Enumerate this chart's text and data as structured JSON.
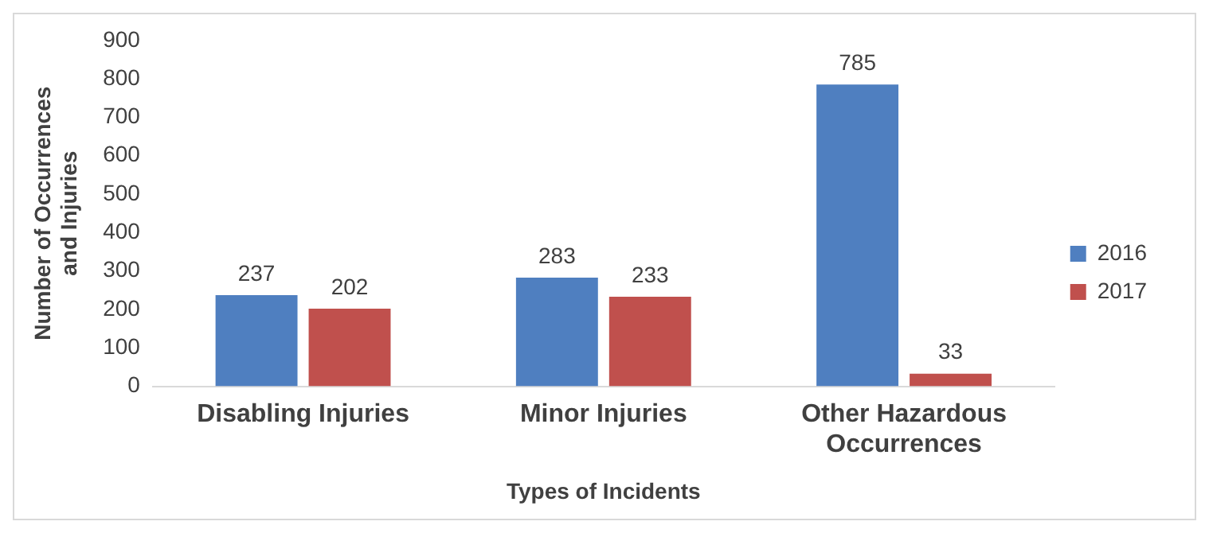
{
  "chart_data": {
    "type": "bar",
    "xlabel": "Types of Incidents",
    "ylabel": "Number of Occurrences and Injuries",
    "categories": [
      "Disabling Injuries",
      "Minor Injuries",
      "Other Hazardous Occurrences"
    ],
    "series": [
      {
        "name": "2016",
        "color": "#4f7fc0",
        "values": [
          237,
          283,
          785
        ]
      },
      {
        "name": "2017",
        "color": "#c0504d",
        "values": [
          202,
          233,
          33
        ]
      }
    ],
    "ylim": [
      0,
      900
    ],
    "yticks": [
      0,
      100,
      200,
      300,
      400,
      500,
      600,
      700,
      800,
      900
    ],
    "grid": false,
    "legend": "right",
    "data_labels": true
  }
}
